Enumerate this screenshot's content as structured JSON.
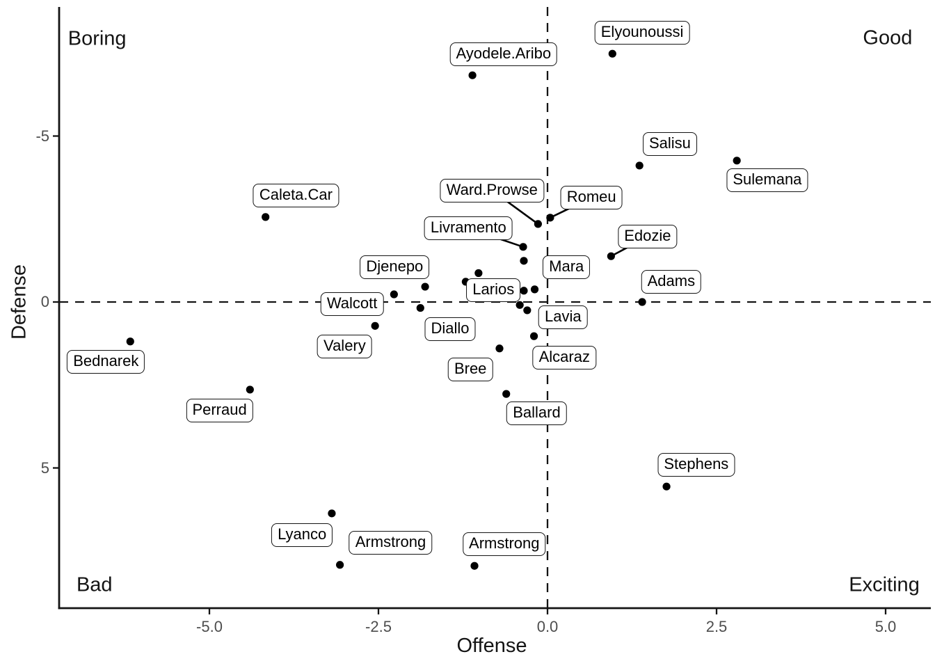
{
  "chart_data": {
    "type": "scatter",
    "xlabel": "Offense",
    "ylabel": "Defense",
    "y_axis_reversed": true,
    "xlim": [
      -7.2,
      5.7
    ],
    "ylim": [
      -8.9,
      9.2
    ],
    "grid": false,
    "x_ticks": [
      {
        "value": -5.0,
        "label": "-5.0"
      },
      {
        "value": -2.5,
        "label": "-2.5"
      },
      {
        "value": 0.0,
        "label": "0.0"
      },
      {
        "value": 2.5,
        "label": "2.5"
      },
      {
        "value": 5.0,
        "label": "5.0"
      }
    ],
    "y_ticks": [
      {
        "value": -5,
        "label": "-5"
      },
      {
        "value": 0,
        "label": "0"
      },
      {
        "value": 5,
        "label": "5"
      }
    ],
    "reference_lines": [
      {
        "axis": "x",
        "value": 0,
        "style": "dashed"
      },
      {
        "axis": "y",
        "value": 0,
        "style": "dashed"
      }
    ],
    "quadrant_annotations": [
      {
        "text": "Boring",
        "x": -6.66,
        "y": -7.92,
        "corner": "top-left"
      },
      {
        "text": "Good",
        "x": 5.03,
        "y": -7.95,
        "corner": "top-right"
      },
      {
        "text": "Bad",
        "x": -6.7,
        "y": 8.53,
        "corner": "bottom-left"
      },
      {
        "text": "Exciting",
        "x": 4.98,
        "y": 8.53,
        "corner": "bottom-right"
      }
    ],
    "points": [
      {
        "label": "Elyounoussi",
        "x": 0.96,
        "y": -7.48,
        "label_x": 1.4,
        "label_y": -8.11,
        "connector": false
      },
      {
        "label": "Ayodele.Aribo",
        "x": -1.11,
        "y": -6.83,
        "label_x": -0.65,
        "label_y": -7.46,
        "connector": false
      },
      {
        "label": "Salisu",
        "x": 1.36,
        "y": -4.11,
        "label_x": 1.81,
        "label_y": -4.76,
        "connector": false
      },
      {
        "label": "Sulemana",
        "x": 2.8,
        "y": -4.26,
        "label_x": 3.25,
        "label_y": -3.67,
        "connector": false
      },
      {
        "label": "Caleta.Car",
        "x": -4.17,
        "y": -2.56,
        "label_x": -3.72,
        "label_y": -3.21,
        "connector": false
      },
      {
        "label": "Ward.Prowse",
        "x": -0.14,
        "y": -2.35,
        "label_x": -0.82,
        "label_y": -3.36,
        "connector": true
      },
      {
        "label": "Romeu",
        "x": 0.04,
        "y": -2.54,
        "label_x": 0.65,
        "label_y": -3.14,
        "connector": true
      },
      {
        "label": "Livramento",
        "x": -0.36,
        "y": -1.66,
        "label_x": -1.17,
        "label_y": -2.22,
        "connector": true
      },
      {
        "label": "Mara",
        "x": -0.35,
        "y": -1.24,
        "label_x": 0.28,
        "label_y": -1.05,
        "connector": false
      },
      {
        "label": "Edozie",
        "x": 0.94,
        "y": -1.38,
        "label_x": 1.48,
        "label_y": -1.97,
        "connector": true
      },
      {
        "label": "Adams",
        "x": 1.4,
        "y": 0.0,
        "label_x": 1.83,
        "label_y": -0.61,
        "connector": false
      },
      {
        "label": "Djenepo",
        "x": -1.81,
        "y": -0.46,
        "label_x": -2.26,
        "label_y": -1.05,
        "connector": false
      },
      {
        "label": "Larios",
        "x": -0.35,
        "y": -0.34,
        "label_x": -0.8,
        "label_y": -0.35,
        "connector": false
      },
      {
        "label": "Walcott",
        "x": -2.27,
        "y": -0.23,
        "label_x": -2.89,
        "label_y": 0.07,
        "connector": false
      },
      {
        "label": "Lavia",
        "x": -0.3,
        "y": 0.25,
        "label_x": 0.23,
        "label_y": 0.46,
        "connector": false
      },
      {
        "label": "Diallo",
        "x": -1.88,
        "y": 0.18,
        "label_x": -1.44,
        "label_y": 0.82,
        "connector": false
      },
      {
        "label": "Valery",
        "x": -2.55,
        "y": 0.72,
        "label_x": -3.0,
        "label_y": 1.35,
        "connector": false
      },
      {
        "label": "Alcaraz",
        "x": -0.2,
        "y": 1.03,
        "label_x": 0.25,
        "label_y": 1.68,
        "connector": false
      },
      {
        "label": "Bree",
        "x": -0.71,
        "y": 1.4,
        "label_x": -1.14,
        "label_y": 2.03,
        "connector": false
      },
      {
        "label": "Bednarek",
        "x": -6.17,
        "y": 1.19,
        "label_x": -6.53,
        "label_y": 1.8,
        "connector": false
      },
      {
        "label": "Perraud",
        "x": -4.4,
        "y": 2.64,
        "label_x": -4.85,
        "label_y": 3.28,
        "connector": false
      },
      {
        "label": "Ballard",
        "x": -0.61,
        "y": 2.77,
        "label_x": -0.16,
        "label_y": 3.35,
        "connector": false
      },
      {
        "label": "Stephens",
        "x": 1.76,
        "y": 5.56,
        "label_x": 2.2,
        "label_y": 4.91,
        "connector": false
      },
      {
        "label": "Lyanco",
        "x": -3.19,
        "y": 6.37,
        "label_x": -3.63,
        "label_y": 7.02,
        "connector": false
      },
      {
        "label": "Armstrong",
        "x": -3.07,
        "y": 7.92,
        "label_x": -2.32,
        "label_y": 7.25,
        "connector": false
      },
      {
        "label": "Armstrong",
        "x": -1.08,
        "y": 7.95,
        "label_x": -0.64,
        "label_y": 7.3,
        "connector": false
      }
    ],
    "unlabeled_points": [
      {
        "x": -1.02,
        "y": -0.87
      },
      {
        "x": -1.21,
        "y": -0.61
      },
      {
        "x": -0.19,
        "y": -0.38
      },
      {
        "x": -0.41,
        "y": 0.09
      }
    ]
  },
  "style": {
    "background": "#ffffff",
    "point_color": "#000000",
    "axis_color": "#141414",
    "tick_label_color": "#4d4d4d",
    "dashed_line_color": "#141414",
    "label_border_color": "#141414",
    "label_fill": "#ffffff"
  }
}
